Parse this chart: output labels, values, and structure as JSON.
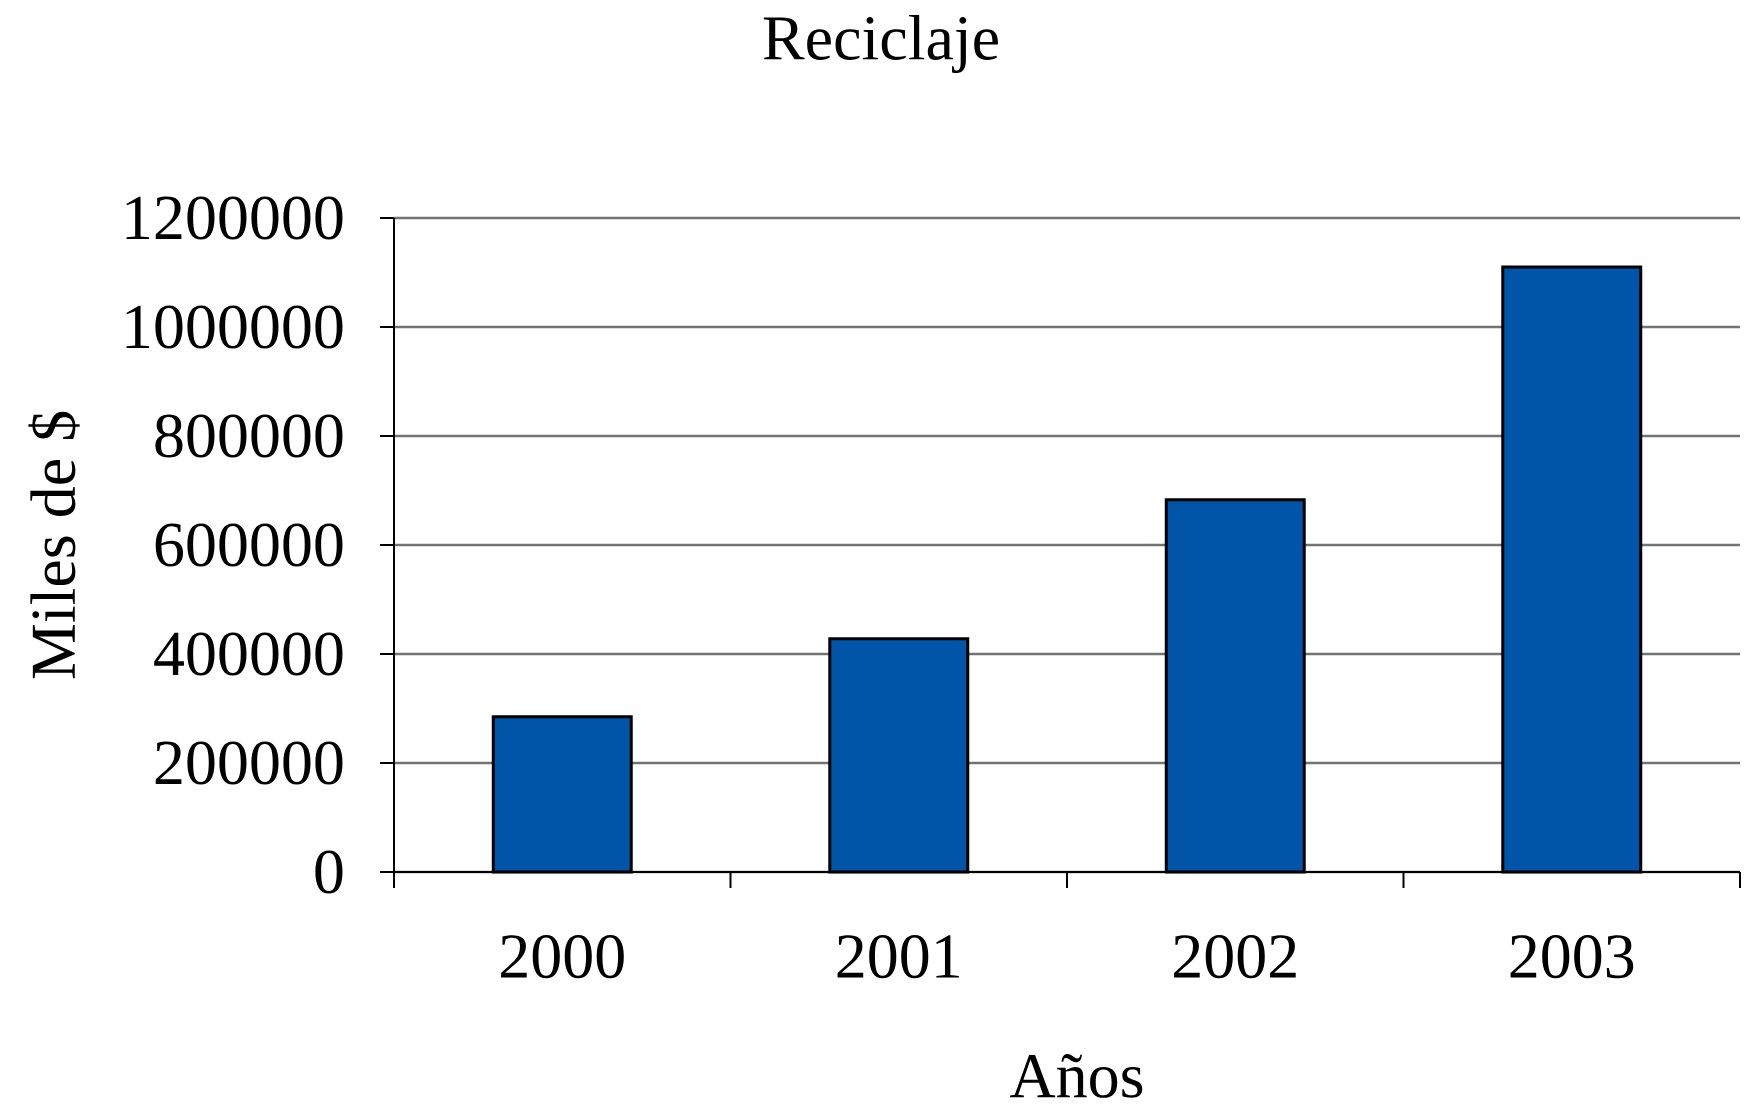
{
  "chart_data": {
    "type": "bar",
    "title": "Reciclaje",
    "xlabel": "Años",
    "ylabel": "Miles de $",
    "categories": [
      "2000",
      "2001",
      "2002",
      "2003"
    ],
    "values": [
      285000,
      428000,
      683000,
      1110000
    ],
    "color": "#0055a8",
    "ylim": [
      0,
      1200000
    ],
    "yticks": [
      0,
      200000,
      400000,
      600000,
      800000,
      1000000,
      1200000
    ],
    "grid": "y"
  }
}
